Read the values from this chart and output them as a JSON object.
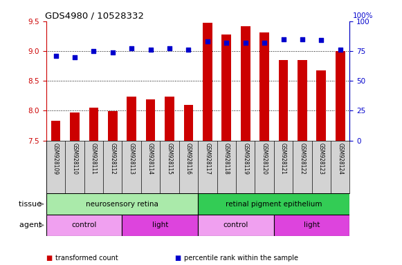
{
  "title": "GDS4980 / 10528332",
  "samples": [
    "GSM928109",
    "GSM928110",
    "GSM928111",
    "GSM928112",
    "GSM928113",
    "GSM928114",
    "GSM928115",
    "GSM928116",
    "GSM928117",
    "GSM928118",
    "GSM928119",
    "GSM928120",
    "GSM928121",
    "GSM928122",
    "GSM928123",
    "GSM928124"
  ],
  "bar_values": [
    7.83,
    7.97,
    8.05,
    7.99,
    8.23,
    8.19,
    8.23,
    8.1,
    9.47,
    9.28,
    9.42,
    9.31,
    8.85,
    8.85,
    8.67,
    9.0
  ],
  "dot_values": [
    71,
    70,
    75,
    74,
    77,
    76,
    77,
    76,
    83,
    82,
    82,
    82,
    85,
    85,
    84,
    76
  ],
  "bar_bottom": 7.5,
  "ylim_left": [
    7.5,
    9.5
  ],
  "ylim_right": [
    0,
    100
  ],
  "yticks_left": [
    7.5,
    8.0,
    8.5,
    9.0,
    9.5
  ],
  "yticks_right": [
    0,
    25,
    50,
    75,
    100
  ],
  "bar_color": "#cc0000",
  "dot_color": "#0000cc",
  "bg_color": "#d3d3d3",
  "plot_bg": "#ffffff",
  "tissue_groups": [
    {
      "label": "neurosensory retina",
      "start": 0,
      "end": 8,
      "color": "#aaeaaa"
    },
    {
      "label": "retinal pigment epithelium",
      "start": 8,
      "end": 16,
      "color": "#33cc55"
    }
  ],
  "agent_groups": [
    {
      "label": "control",
      "start": 0,
      "end": 4,
      "color": "#f0a0f0"
    },
    {
      "label": "light",
      "start": 4,
      "end": 8,
      "color": "#dd44dd"
    },
    {
      "label": "control",
      "start": 8,
      "end": 12,
      "color": "#f0a0f0"
    },
    {
      "label": "light",
      "start": 12,
      "end": 16,
      "color": "#dd44dd"
    }
  ],
  "legend_items": [
    {
      "label": "transformed count",
      "color": "#cc0000"
    },
    {
      "label": "percentile rank within the sample",
      "color": "#0000cc"
    }
  ],
  "dotted_lines": [
    8.0,
    8.5,
    9.0
  ],
  "tissue_label": "tissue",
  "agent_label": "agent",
  "right_axis_label": "100%"
}
